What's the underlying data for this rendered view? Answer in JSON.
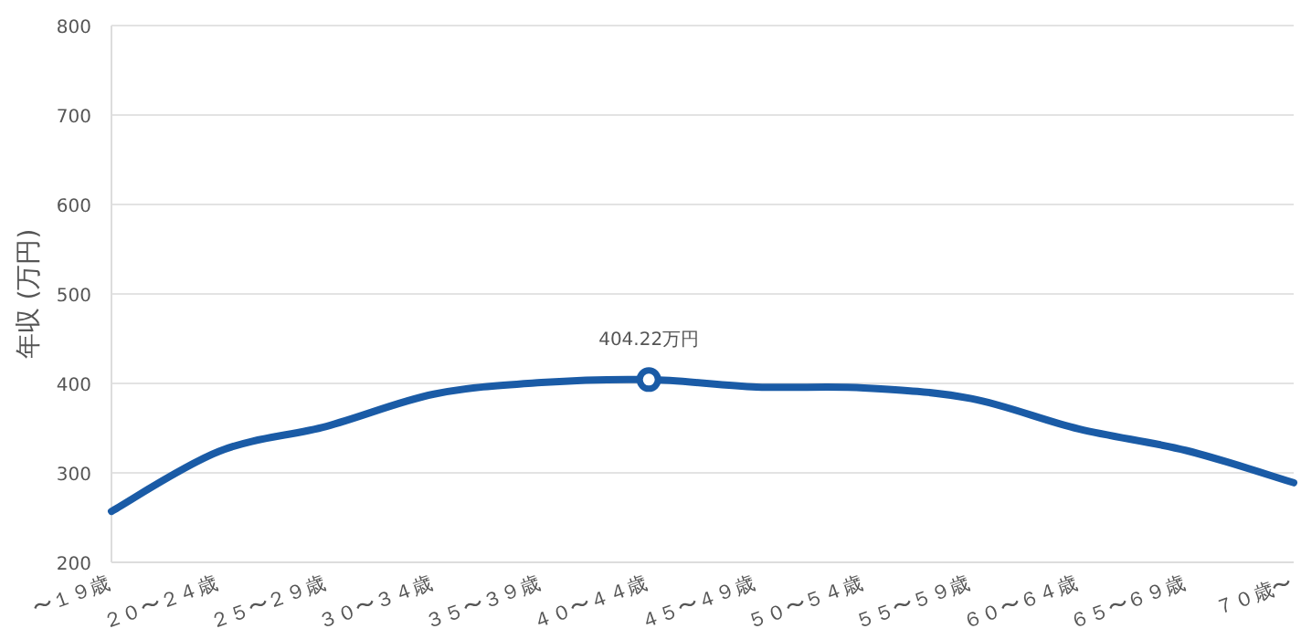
{
  "chart_data": {
    "type": "line",
    "ylabel": "年収 (万円)",
    "categories": [
      "〜１９歳",
      "２０〜２４歳",
      "２５〜２９歳",
      "３０〜３４歳",
      "３５〜３９歳",
      "４０〜４４歳",
      "４５〜４９歳",
      "５０〜５４歳",
      "５５〜５９歳",
      "６０〜６４歳",
      "６５〜６９歳",
      "７０歳〜"
    ],
    "series": [
      {
        "color": "#1a5ba6",
        "values": [
          257,
          324,
          352,
          388,
          401,
          404.22,
          396,
          395,
          383,
          349,
          325,
          289
        ],
        "value_labels": [
          null,
          null,
          null,
          null,
          null,
          "404.22万円",
          null,
          null,
          null,
          null,
          null,
          null
        ]
      }
    ],
    "ylim": [
      200,
      800
    ],
    "yticks": [
      200,
      300,
      400,
      500,
      600,
      700,
      800
    ],
    "grid": "y"
  }
}
